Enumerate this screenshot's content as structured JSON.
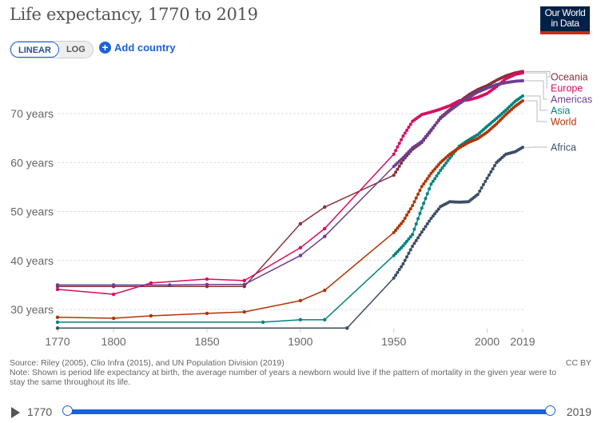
{
  "title": "Life expectancy, 1770 to 2019",
  "logo": "Our World in Data",
  "logo_lines": [
    "Our World",
    "in Data"
  ],
  "controls": {
    "linear": "LINEAR",
    "log": "LOG",
    "add_country": "Add country",
    "active_scale": "linear"
  },
  "footer": {
    "source": "Source: Riley (2005), Clio Infra (2015), and UN Population Division (2019)",
    "note": "Note: Shown is period life expectancy at birth, the average number of years a newborn would live if the pattern of mortality in the given year were to stay the same throughout its life.",
    "license": "CC BY"
  },
  "timeline": {
    "start": "1770",
    "end": "2019",
    "start_value": 1770,
    "end_value": 2019
  },
  "chart_data": {
    "type": "line",
    "title": "Life expectancy, 1770 to 2019",
    "xlim": [
      1770,
      2019
    ],
    "ylim": [
      26,
      80
    ],
    "x_ticks": [
      1770,
      1800,
      1850,
      1900,
      1950,
      2000,
      2019
    ],
    "x_tick_labels": [
      "1770",
      "1800",
      "1850",
      "1900",
      "1950",
      "2000",
      "2019"
    ],
    "y_ticks": [
      30,
      40,
      50,
      60,
      70
    ],
    "y_tick_labels": [
      "30 years",
      "40 years",
      "50 years",
      "60 years",
      "70 years"
    ],
    "grid": "horizontal dashed",
    "legend": "right, labels at line ends",
    "series": [
      {
        "name": "Oceania",
        "color": "#883039",
        "points": [
          [
            1770,
            34.7
          ],
          [
            1800,
            34.7
          ],
          [
            1850,
            34.7
          ],
          [
            1870,
            34.7
          ],
          [
            1900,
            47.5
          ],
          [
            1913,
            50.9
          ],
          [
            1950,
            57.4
          ],
          [
            1955,
            60.5
          ],
          [
            1960,
            62.7
          ],
          [
            1965,
            64.1
          ],
          [
            1970,
            66.5
          ],
          [
            1975,
            69.2
          ],
          [
            1980,
            70.8
          ],
          [
            1985,
            72.4
          ],
          [
            1990,
            73.8
          ],
          [
            1995,
            74.9
          ],
          [
            2000,
            75.7
          ],
          [
            2005,
            76.8
          ],
          [
            2010,
            77.7
          ],
          [
            2015,
            78.3
          ],
          [
            2019,
            78.6
          ]
        ]
      },
      {
        "name": "Europe",
        "color": "#d90c61",
        "points": [
          [
            1770,
            34.1
          ],
          [
            1800,
            33.1
          ],
          [
            1820,
            35.4
          ],
          [
            1850,
            36.2
          ],
          [
            1870,
            35.9
          ],
          [
            1900,
            42.6
          ],
          [
            1913,
            46.5
          ],
          [
            1950,
            61.7
          ],
          [
            1955,
            65.4
          ],
          [
            1960,
            68.4
          ],
          [
            1965,
            69.8
          ],
          [
            1970,
            70.3
          ],
          [
            1975,
            70.9
          ],
          [
            1980,
            71.6
          ],
          [
            1985,
            72.6
          ],
          [
            1990,
            72.8
          ],
          [
            1995,
            73.3
          ],
          [
            2000,
            74.1
          ],
          [
            2005,
            75.5
          ],
          [
            2010,
            77.1
          ],
          [
            2015,
            78.0
          ],
          [
            2019,
            78.3
          ]
        ]
      },
      {
        "name": "Americas",
        "color": "#6d3e91",
        "points": [
          [
            1770,
            35.0
          ],
          [
            1800,
            35.0
          ],
          [
            1830,
            35.0
          ],
          [
            1850,
            35.1
          ],
          [
            1870,
            35.1
          ],
          [
            1900,
            41.0
          ],
          [
            1913,
            44.9
          ],
          [
            1950,
            59.2
          ],
          [
            1955,
            61.0
          ],
          [
            1960,
            63.0
          ],
          [
            1965,
            64.3
          ],
          [
            1970,
            66.7
          ],
          [
            1975,
            69.0
          ],
          [
            1980,
            70.6
          ],
          [
            1985,
            72.0
          ],
          [
            1990,
            73.3
          ],
          [
            1995,
            74.4
          ],
          [
            2000,
            75.2
          ],
          [
            2005,
            75.9
          ],
          [
            2010,
            76.3
          ],
          [
            2015,
            76.6
          ],
          [
            2019,
            76.7
          ]
        ]
      },
      {
        "name": "Asia",
        "color": "#00847e",
        "points": [
          [
            1770,
            27.4
          ],
          [
            1880,
            27.4
          ],
          [
            1900,
            27.9
          ],
          [
            1913,
            27.9
          ],
          [
            1950,
            41.0
          ],
          [
            1955,
            43.0
          ],
          [
            1960,
            45.3
          ],
          [
            1965,
            50.7
          ],
          [
            1970,
            55.6
          ],
          [
            1975,
            58.4
          ],
          [
            1980,
            60.9
          ],
          [
            1985,
            63.3
          ],
          [
            1990,
            64.6
          ],
          [
            1995,
            65.7
          ],
          [
            2000,
            67.4
          ],
          [
            2005,
            69.0
          ],
          [
            2010,
            70.7
          ],
          [
            2015,
            72.5
          ],
          [
            2019,
            73.6
          ]
        ]
      },
      {
        "name": "World",
        "color": "#b13507",
        "points": [
          [
            1770,
            28.4
          ],
          [
            1800,
            28.2
          ],
          [
            1820,
            28.7
          ],
          [
            1850,
            29.2
          ],
          [
            1870,
            29.5
          ],
          [
            1900,
            31.8
          ],
          [
            1913,
            33.9
          ],
          [
            1950,
            45.7
          ],
          [
            1955,
            48.0
          ],
          [
            1960,
            51.2
          ],
          [
            1965,
            55.1
          ],
          [
            1970,
            57.8
          ],
          [
            1975,
            60.0
          ],
          [
            1980,
            61.7
          ],
          [
            1985,
            63.0
          ],
          [
            1990,
            64.1
          ],
          [
            1995,
            64.9
          ],
          [
            2000,
            66.2
          ],
          [
            2005,
            67.9
          ],
          [
            2010,
            69.8
          ],
          [
            2015,
            71.5
          ],
          [
            2019,
            72.6
          ]
        ]
      },
      {
        "name": "Africa",
        "color": "#3c4e66",
        "points": [
          [
            1770,
            26.2
          ],
          [
            1925,
            26.2
          ],
          [
            1950,
            36.4
          ],
          [
            1955,
            39.3
          ],
          [
            1960,
            42.9
          ],
          [
            1965,
            45.8
          ],
          [
            1970,
            48.6
          ],
          [
            1975,
            51.0
          ],
          [
            1980,
            52.0
          ],
          [
            1985,
            51.9
          ],
          [
            1990,
            52.0
          ],
          [
            1995,
            53.5
          ],
          [
            2000,
            56.8
          ],
          [
            2005,
            60.0
          ],
          [
            2010,
            61.7
          ],
          [
            2015,
            62.2
          ],
          [
            2019,
            63.1
          ]
        ]
      }
    ]
  }
}
